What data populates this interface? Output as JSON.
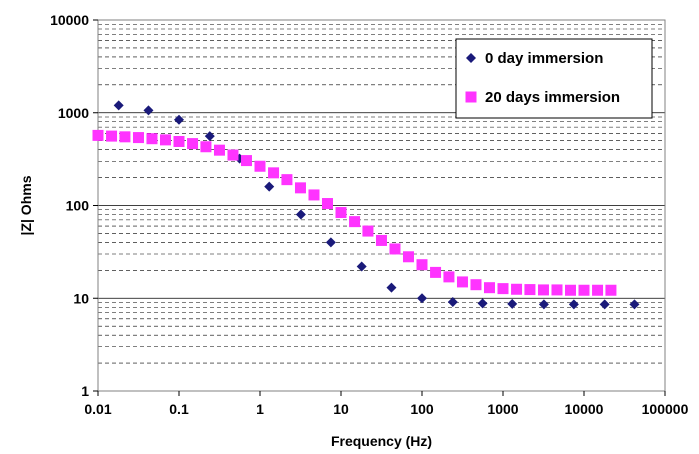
{
  "chart_data": {
    "type": "scatter",
    "title": "",
    "xlabel": "Frequency (Hz)",
    "ylabel": "|Z| Ohms",
    "x_scale": "log",
    "y_scale": "log",
    "xlim": [
      0.01,
      100000
    ],
    "ylim": [
      1,
      10000
    ],
    "x_tick_labels": [
      "0.01",
      "0.1",
      "1",
      "10",
      "100",
      "1000",
      "10000",
      "100000"
    ],
    "y_tick_labels": [
      "1",
      "10",
      "100",
      "1000",
      "10000"
    ],
    "grid": "horizontal major solid, minor dashed",
    "legend_position": "top-right",
    "series": [
      {
        "name": "0 day immersion",
        "marker": "diamond",
        "color": "#1a1a7a",
        "x": [
          0.018,
          0.042,
          0.1,
          0.24,
          0.56,
          1.3,
          3.2,
          7.5,
          18,
          42,
          100,
          240,
          560,
          1300,
          3200,
          7500,
          18000,
          42000
        ],
        "y": [
          1200,
          1060,
          840,
          560,
          320,
          160,
          80,
          40,
          22,
          13,
          10,
          9.1,
          8.8,
          8.7,
          8.6,
          8.6,
          8.6,
          8.6
        ]
      },
      {
        "name": "20 days immersion",
        "marker": "square",
        "color": "#ff33ff",
        "x": [
          0.01,
          0.0147,
          0.0215,
          0.0316,
          0.0464,
          0.0681,
          0.1,
          0.147,
          0.215,
          0.316,
          0.464,
          0.681,
          1,
          1.47,
          2.15,
          3.16,
          4.64,
          6.81,
          10,
          14.7,
          21.5,
          31.6,
          46.4,
          68.1,
          100,
          147,
          215,
          316,
          464,
          681,
          1000,
          1470,
          2150,
          3160,
          4640,
          6810,
          10000,
          14700,
          21500
        ],
        "y": [
          570,
          560,
          550,
          540,
          525,
          510,
          490,
          465,
          430,
          395,
          350,
          305,
          265,
          225,
          190,
          155,
          130,
          105,
          84,
          67,
          53,
          42,
          34,
          28,
          23,
          19,
          17,
          15,
          14,
          13,
          12.7,
          12.5,
          12.4,
          12.3,
          12.3,
          12.2,
          12.2,
          12.2,
          12.2
        ]
      }
    ]
  }
}
